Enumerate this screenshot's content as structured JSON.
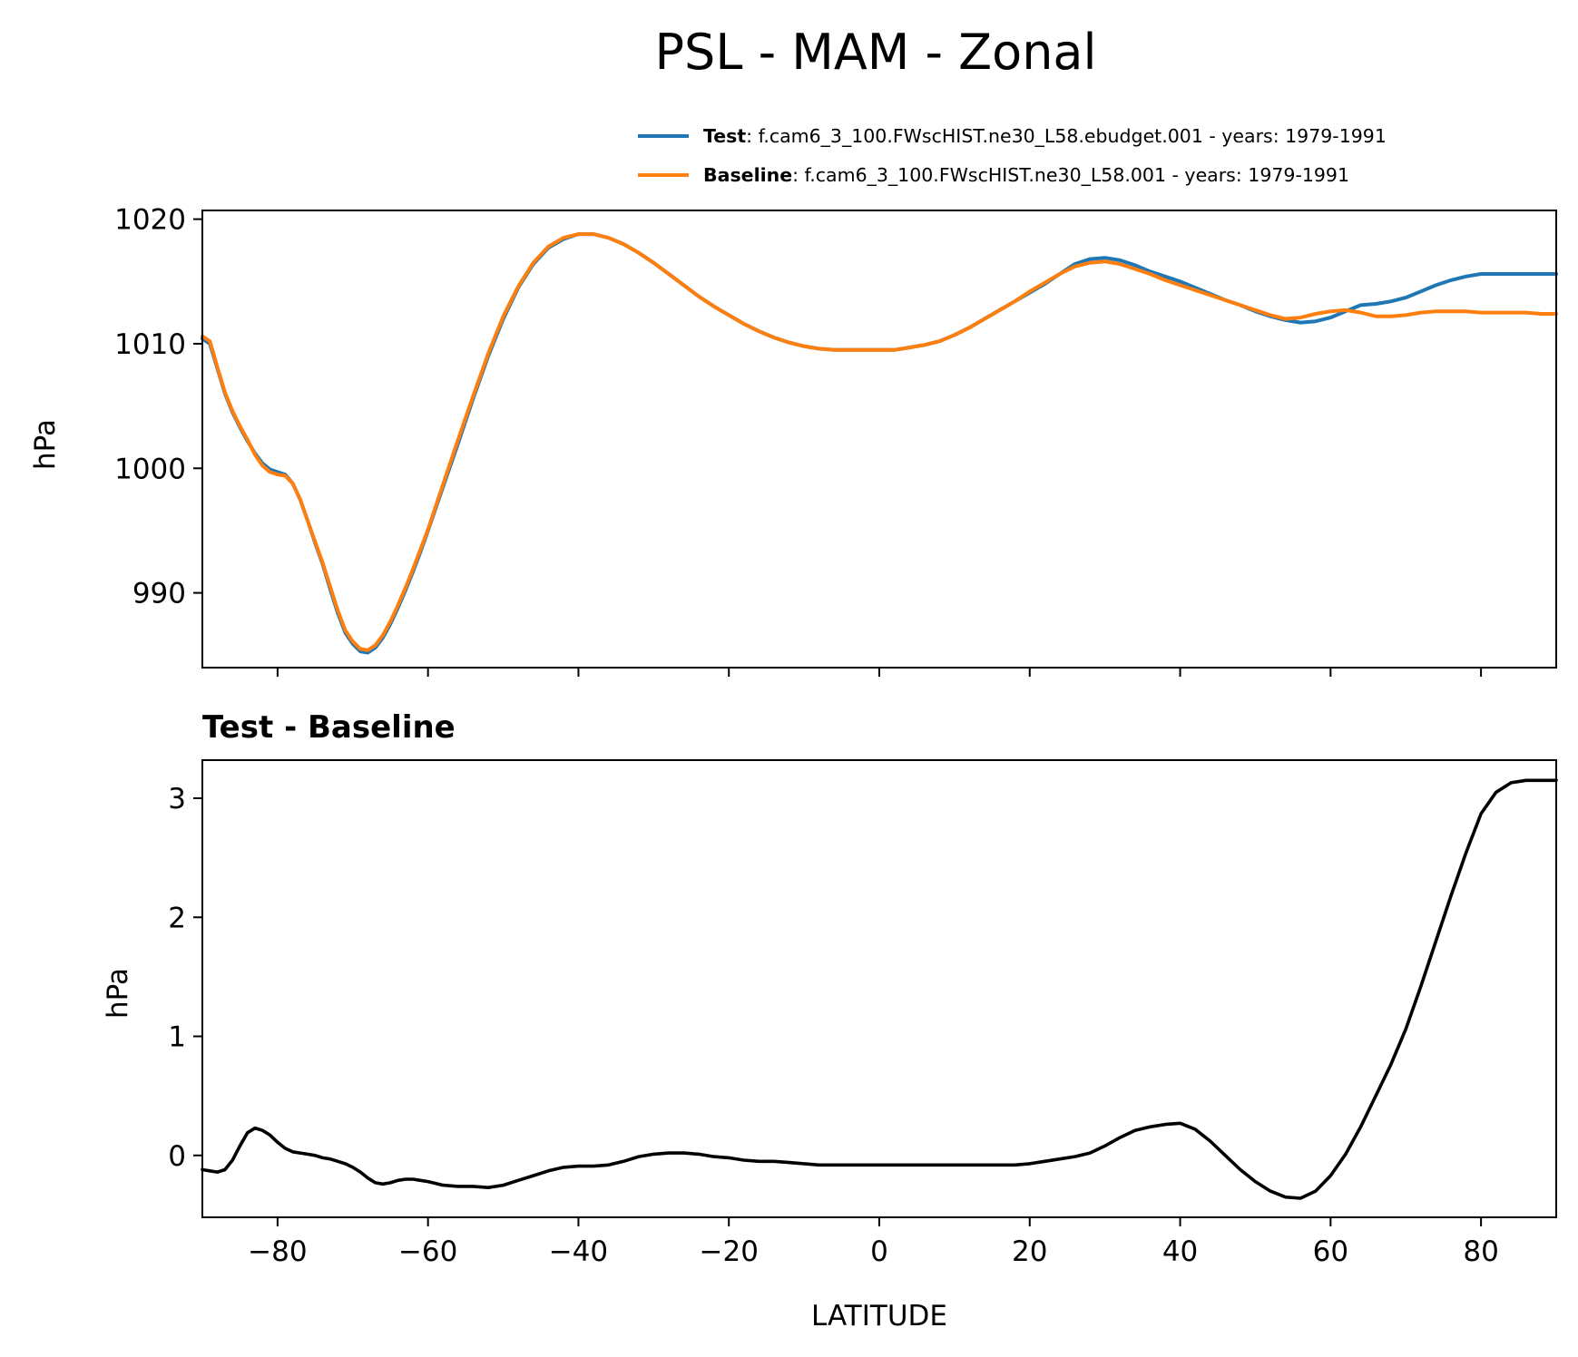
{
  "title": "PSL - MAM - Zonal",
  "legend": {
    "placement": "above-top-right",
    "entries": [
      {
        "bold": "Test",
        "text": ": f.cam6_3_100.FWscHIST.ne30_L58.ebudget.001 - years: 1979-1991",
        "color": "#1f77b4"
      },
      {
        "bold": "Baseline",
        "text": ": f.cam6_3_100.FWscHIST.ne30_L58.001 - years: 1979-1991",
        "color": "#ff7f0e"
      }
    ]
  },
  "chart_data": [
    {
      "type": "line",
      "title": "",
      "xlabel": "",
      "ylabel": "hPa",
      "xlim": [
        -90,
        90
      ],
      "ylim": [
        984,
        1020.7
      ],
      "yticks": [
        990,
        1000,
        1010,
        1020
      ],
      "yticklabels": [
        "990",
        "1000",
        "1010",
        "1020"
      ],
      "xticks": [
        -80,
        -60,
        -40,
        -20,
        0,
        20,
        40,
        60,
        80
      ],
      "grid": false,
      "x": [
        -90,
        -89,
        -88,
        -87,
        -86,
        -85,
        -84,
        -83,
        -82,
        -81,
        -80,
        -79,
        -78,
        -77,
        -76,
        -75,
        -74,
        -73,
        -72,
        -71,
        -70,
        -69,
        -68,
        -67,
        -66,
        -65,
        -64,
        -63,
        -62,
        -61,
        -60,
        -58,
        -56,
        -54,
        -52,
        -50,
        -48,
        -46,
        -44,
        -42,
        -40,
        -38,
        -36,
        -34,
        -32,
        -30,
        -28,
        -26,
        -24,
        -22,
        -20,
        -18,
        -16,
        -14,
        -12,
        -10,
        -8,
        -6,
        -4,
        -2,
        0,
        2,
        4,
        6,
        8,
        10,
        12,
        14,
        16,
        18,
        20,
        22,
        24,
        26,
        28,
        30,
        32,
        34,
        36,
        38,
        40,
        42,
        44,
        46,
        48,
        50,
        52,
        54,
        56,
        58,
        60,
        62,
        64,
        66,
        68,
        70,
        72,
        74,
        76,
        78,
        80,
        82,
        84,
        86,
        88,
        90
      ],
      "series": [
        {
          "name": "Test",
          "color": "#1f77b4",
          "values": [
            1010.4,
            1010.0,
            1008.0,
            1006.0,
            1004.5,
            1003.3,
            1002.2,
            1001.2,
            1000.4,
            999.9,
            999.7,
            999.5,
            998.8,
            997.5,
            995.8,
            994.0,
            992.3,
            990.3,
            988.4,
            986.8,
            985.9,
            985.3,
            985.2,
            985.6,
            986.4,
            987.5,
            988.8,
            990.2,
            991.7,
            993.3,
            995.0,
            998.5,
            1002.0,
            1005.6,
            1009.0,
            1012.0,
            1014.5,
            1016.4,
            1017.7,
            1018.4,
            1018.8,
            1018.8,
            1018.5,
            1018.0,
            1017.3,
            1016.5,
            1015.6,
            1014.7,
            1013.8,
            1013.0,
            1012.3,
            1011.6,
            1011.0,
            1010.5,
            1010.1,
            1009.8,
            1009.6,
            1009.5,
            1009.5,
            1009.5,
            1009.5,
            1009.5,
            1009.7,
            1009.9,
            1010.2,
            1010.7,
            1011.3,
            1012.0,
            1012.7,
            1013.4,
            1014.1,
            1014.8,
            1015.6,
            1016.4,
            1016.8,
            1016.9,
            1016.7,
            1016.3,
            1015.8,
            1015.4,
            1015.0,
            1014.5,
            1014.0,
            1013.5,
            1013.1,
            1012.6,
            1012.2,
            1011.9,
            1011.7,
            1011.8,
            1012.1,
            1012.6,
            1013.1,
            1013.2,
            1013.4,
            1013.7,
            1014.2,
            1014.7,
            1015.1,
            1015.4,
            1015.6,
            1015.6,
            1015.6,
            1015.6,
            1015.6,
            1015.6
          ]
        },
        {
          "name": "Baseline",
          "color": "#ff7f0e",
          "values": [
            1010.6,
            1010.2,
            1008.1,
            1006.1,
            1004.6,
            1003.4,
            1002.3,
            1001.1,
            1000.2,
            999.7,
            999.5,
            999.4,
            998.8,
            997.5,
            995.8,
            994.1,
            992.4,
            990.5,
            988.6,
            987.0,
            986.1,
            985.5,
            985.4,
            985.8,
            986.6,
            987.7,
            989.0,
            990.4,
            991.9,
            993.5,
            995.1,
            998.7,
            1002.3,
            1005.8,
            1009.2,
            1012.2,
            1014.6,
            1016.5,
            1017.8,
            1018.5,
            1018.8,
            1018.8,
            1018.5,
            1018.0,
            1017.3,
            1016.5,
            1015.6,
            1014.7,
            1013.8,
            1013.0,
            1012.3,
            1011.6,
            1011.0,
            1010.5,
            1010.1,
            1009.8,
            1009.6,
            1009.5,
            1009.5,
            1009.5,
            1009.5,
            1009.5,
            1009.7,
            1009.9,
            1010.2,
            1010.7,
            1011.3,
            1012.0,
            1012.7,
            1013.4,
            1014.2,
            1014.9,
            1015.6,
            1016.2,
            1016.5,
            1016.6,
            1016.4,
            1016.0,
            1015.6,
            1015.1,
            1014.7,
            1014.3,
            1013.9,
            1013.5,
            1013.1,
            1012.7,
            1012.3,
            1012.0,
            1012.1,
            1012.4,
            1012.6,
            1012.7,
            1012.5,
            1012.2,
            1012.2,
            1012.3,
            1012.5,
            1012.6,
            1012.6,
            1012.6,
            1012.5,
            1012.5,
            1012.5,
            1012.5,
            1012.4,
            1012.4
          ]
        }
      ]
    },
    {
      "type": "line",
      "title": "Test - Baseline",
      "xlabel": "LATITUDE",
      "ylabel": "hPa",
      "xlim": [
        -90,
        90
      ],
      "ylim": [
        -0.52,
        3.32
      ],
      "yticks": [
        0,
        1,
        2,
        3
      ],
      "yticklabels": [
        "0",
        "1",
        "2",
        "3"
      ],
      "xticks": [
        -80,
        -60,
        -40,
        -20,
        0,
        20,
        40,
        60,
        80
      ],
      "xticklabels": [
        "−80",
        "−60",
        "−40",
        "−20",
        "0",
        "20",
        "40",
        "60",
        "80"
      ],
      "grid": false,
      "x": [
        -90,
        -89,
        -88,
        -87,
        -86,
        -85,
        -84,
        -83,
        -82,
        -81,
        -80,
        -79,
        -78,
        -77,
        -76,
        -75,
        -74,
        -73,
        -72,
        -71,
        -70,
        -69,
        -68,
        -67,
        -66,
        -65,
        -64,
        -63,
        -62,
        -61,
        -60,
        -58,
        -56,
        -54,
        -52,
        -50,
        -48,
        -46,
        -44,
        -42,
        -40,
        -38,
        -36,
        -34,
        -32,
        -30,
        -28,
        -26,
        -24,
        -22,
        -20,
        -18,
        -16,
        -14,
        -12,
        -10,
        -8,
        -6,
        -4,
        -2,
        0,
        2,
        4,
        6,
        8,
        10,
        12,
        14,
        16,
        18,
        20,
        22,
        24,
        26,
        28,
        30,
        32,
        34,
        36,
        38,
        40,
        42,
        44,
        46,
        48,
        50,
        52,
        54,
        56,
        58,
        60,
        62,
        64,
        66,
        68,
        70,
        72,
        74,
        76,
        78,
        80,
        82,
        84,
        86,
        88,
        90
      ],
      "series": [
        {
          "name": "",
          "color": "#000000",
          "values": [
            -0.12,
            -0.13,
            -0.14,
            -0.12,
            -0.04,
            0.08,
            0.19,
            0.23,
            0.21,
            0.17,
            0.11,
            0.06,
            0.03,
            0.02,
            0.01,
            0.0,
            -0.02,
            -0.03,
            -0.05,
            -0.07,
            -0.1,
            -0.14,
            -0.19,
            -0.23,
            -0.24,
            -0.23,
            -0.21,
            -0.2,
            -0.2,
            -0.21,
            -0.22,
            -0.25,
            -0.26,
            -0.26,
            -0.27,
            -0.25,
            -0.21,
            -0.17,
            -0.13,
            -0.1,
            -0.09,
            -0.09,
            -0.08,
            -0.05,
            -0.01,
            0.01,
            0.02,
            0.02,
            0.01,
            -0.01,
            -0.02,
            -0.04,
            -0.05,
            -0.05,
            -0.06,
            -0.07,
            -0.08,
            -0.08,
            -0.08,
            -0.08,
            -0.08,
            -0.08,
            -0.08,
            -0.08,
            -0.08,
            -0.08,
            -0.08,
            -0.08,
            -0.08,
            -0.08,
            -0.07,
            -0.05,
            -0.03,
            -0.01,
            0.02,
            0.08,
            0.15,
            0.21,
            0.24,
            0.26,
            0.27,
            0.22,
            0.12,
            0.0,
            -0.12,
            -0.22,
            -0.3,
            -0.35,
            -0.36,
            -0.3,
            -0.17,
            0.01,
            0.24,
            0.5,
            0.76,
            1.06,
            1.42,
            1.8,
            2.18,
            2.54,
            2.87,
            3.05,
            3.13,
            3.15,
            3.15,
            3.15
          ]
        }
      ]
    }
  ]
}
